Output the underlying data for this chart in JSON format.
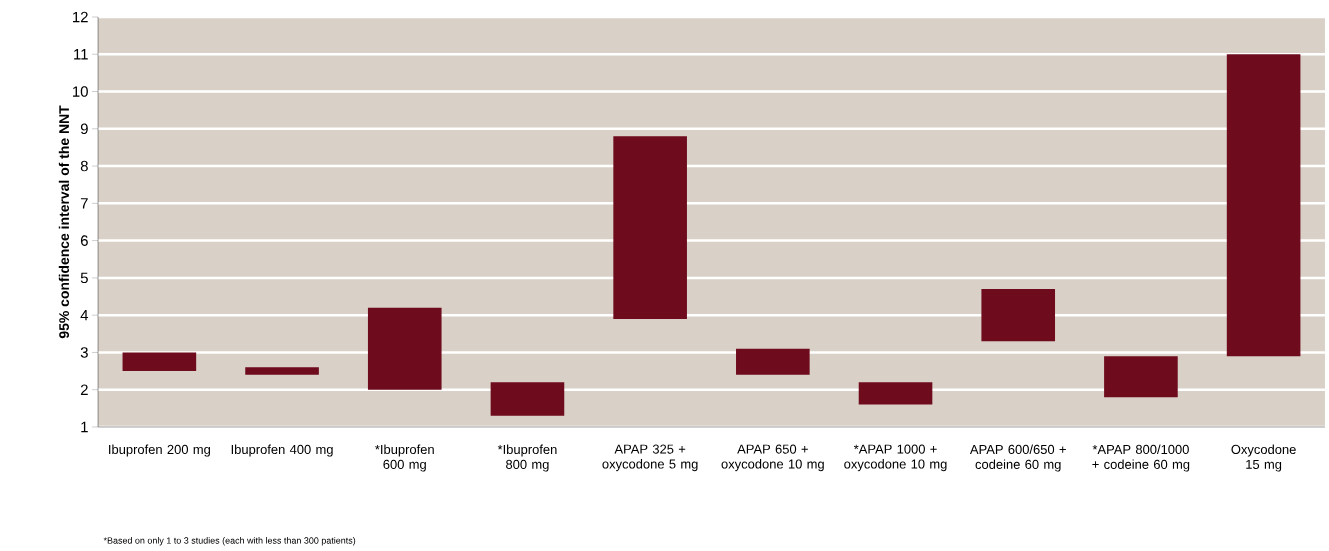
{
  "chart_data": {
    "type": "bar",
    "ylabel": "95% confidence interval of the NNT",
    "categories": [
      "Ibuprofen 200 mg",
      "Ibuprofen 400 mg",
      "*Ibuprofen 600 mg",
      "*Ibuprofen 800 mg",
      "APAP 325 + oxycodone 5 mg",
      "APAP 650 + oxycodone 10 mg",
      "*APAP 1000 + oxycodone 10 mg",
      "APAP 600/650 + codeine 60 mg",
      "*APAP 800/1000 + codeine 60 mg",
      "Oxycodone 15 mg"
    ],
    "base": [
      2.5,
      2.4,
      2.0,
      1.3,
      3.9,
      2.4,
      1.6,
      3.3,
      1.8,
      2.9
    ],
    "values": [
      0.5,
      0.2,
      2.2,
      0.9,
      4.9,
      0.7,
      0.6,
      1.4,
      1.1,
      8.1
    ],
    "color": "#6e0b1c",
    "ylim": [
      1,
      12
    ],
    "yticks": [
      1,
      2,
      3,
      4,
      5,
      6,
      7,
      8,
      9,
      10,
      11,
      12
    ],
    "grid": "y",
    "annotations": [
      "*Based on only 1 to 3 studies (each with less than 300 patients)"
    ]
  }
}
